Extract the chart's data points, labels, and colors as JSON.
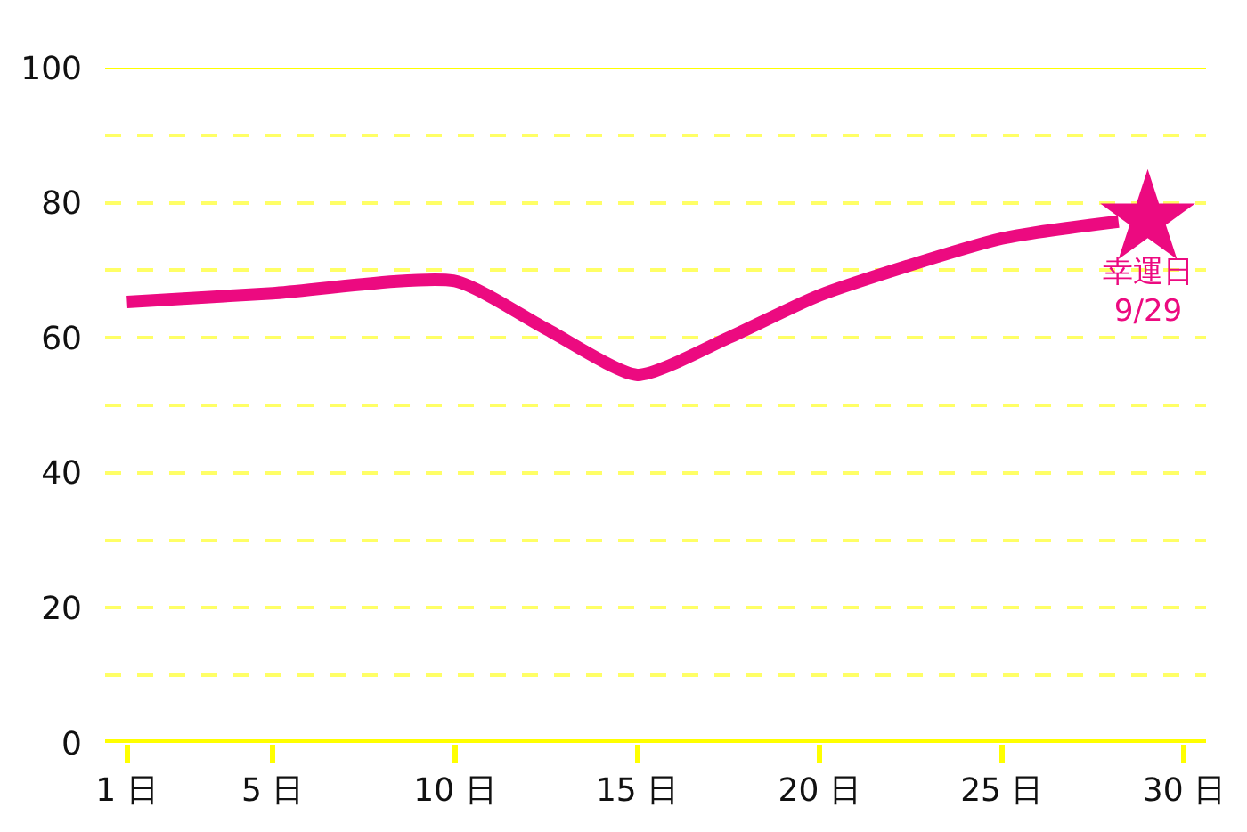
{
  "chart_data": {
    "type": "line",
    "x": [
      1,
      5,
      10,
      12.5,
      15,
      17.5,
      20,
      25,
      28.2
    ],
    "xlim": [
      0.4,
      30.6
    ],
    "ylim": [
      0,
      100
    ],
    "xticks": [
      {
        "value": 1,
        "label": "1 日"
      },
      {
        "value": 5,
        "label": "5 日"
      },
      {
        "value": 10,
        "label": "10 日"
      },
      {
        "value": 15,
        "label": "15 日"
      },
      {
        "value": 20,
        "label": "20 日"
      },
      {
        "value": 25,
        "label": "25 日"
      },
      {
        "value": 30,
        "label": "30 日"
      }
    ],
    "yticks": [
      0,
      20,
      40,
      60,
      80,
      100
    ],
    "grid": "y",
    "series": [
      {
        "color": "#ec0a80",
        "marker": "none",
        "values": [
          65.3,
          66.6,
          68.4,
          61.3,
          54.5,
          60,
          66.3,
          74.7,
          77.2
        ]
      },
      {
        "type": "scatter",
        "color": "#ec0a80",
        "marker": "star",
        "x": [
          29
        ],
        "values": [
          77.6
        ]
      }
    ],
    "annotations": [
      {
        "text": "幸運日\n9/29",
        "x": 29,
        "y": 77.6
      }
    ]
  }
}
